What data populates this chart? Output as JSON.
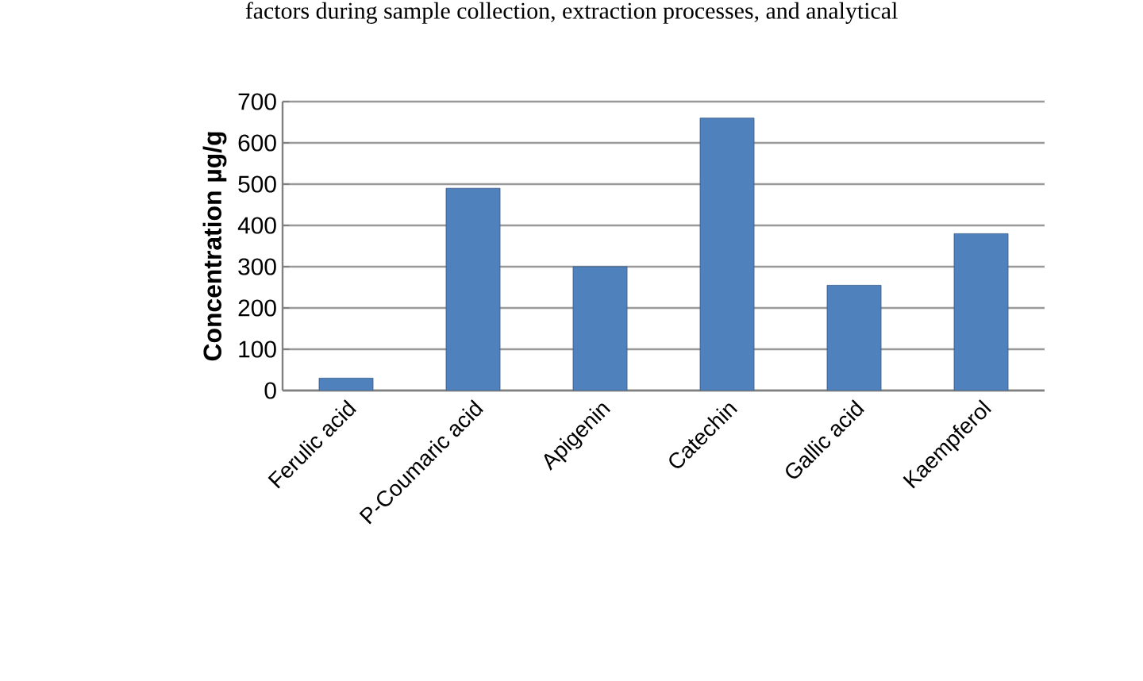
{
  "chart_data": {
    "type": "bar",
    "ylabel": "Concentration µg/g",
    "categories": [
      "Ferulic acid",
      "P-Coumaric acid",
      "Apigenin",
      "Catechin",
      "Gallic acid",
      "Kaempferol"
    ],
    "values": [
      30,
      490,
      300,
      660,
      255,
      380
    ],
    "color": "#4f81bd",
    "ylim": [
      0,
      700
    ],
    "yticks": [
      0,
      100,
      200,
      300,
      400,
      500,
      600,
      700
    ],
    "grid": "y",
    "annotations": [
      "factors during sample collection, extraction processes, and analytical"
    ]
  }
}
